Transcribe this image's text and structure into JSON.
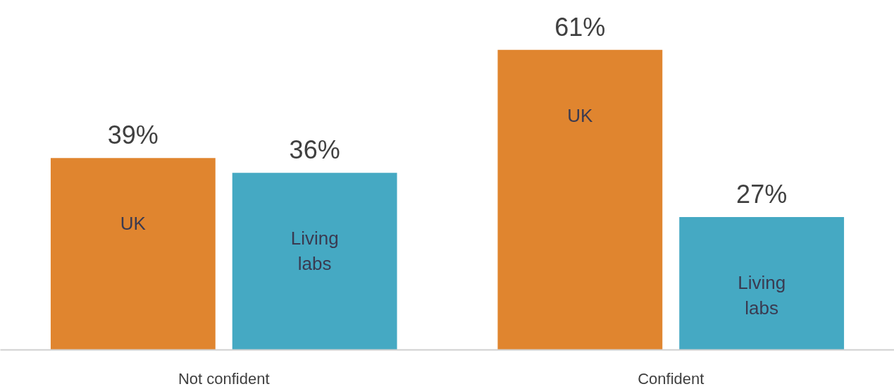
{
  "chart_data": {
    "type": "bar",
    "categories": [
      "Not confident",
      "Confident"
    ],
    "series": [
      {
        "name": "UK",
        "color": "#e0852f",
        "values": [
          39,
          61
        ],
        "value_labels": [
          "39%",
          "61%"
        ]
      },
      {
        "name": "Living labs",
        "color": "#45a9c3",
        "values": [
          36,
          27
        ],
        "value_labels": [
          "36%",
          "27%"
        ]
      }
    ],
    "grid": false,
    "legend": false,
    "tick_labels": "x"
  }
}
